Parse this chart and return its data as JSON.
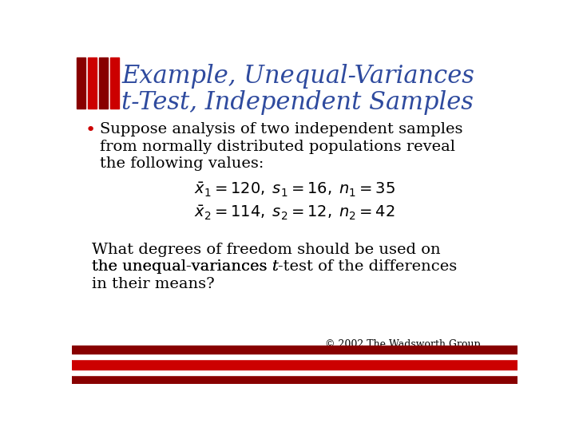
{
  "title_line1": "Example, Unequal-Variances",
  "title_line2": "t-Test, Independent Samples",
  "title_color": "#2E4A9E",
  "bullet_text_line1": "Suppose analysis of two independent samples",
  "bullet_text_line2": "from normally distributed populations reveal",
  "bullet_text_line3": "the following values:",
  "formula1": "$\\bar{x}_1 =120,\\; s_1 =16,\\; n_1 =35$",
  "formula2": "$\\bar{x}_2 =114,\\; s_2 =12,\\; n_2 =42$",
  "question_line1": "What degrees of freedom should be used on",
  "question_line2a": "the unequal-variances ",
  "question_italic": "t",
  "question_line2b": "-test of the differences",
  "question_line3": "in their means?",
  "copyright": "© 2002 The Wadsworth Group",
  "bg_color": "#FFFFFF",
  "text_color": "#000000",
  "bullet_color": "#CC0000",
  "bar_color_red": "#CC0000",
  "bar_color_dark": "#880000",
  "title_fontsize": 22,
  "body_fontsize": 14,
  "formula_fontsize": 14,
  "copyright_fontsize": 9
}
